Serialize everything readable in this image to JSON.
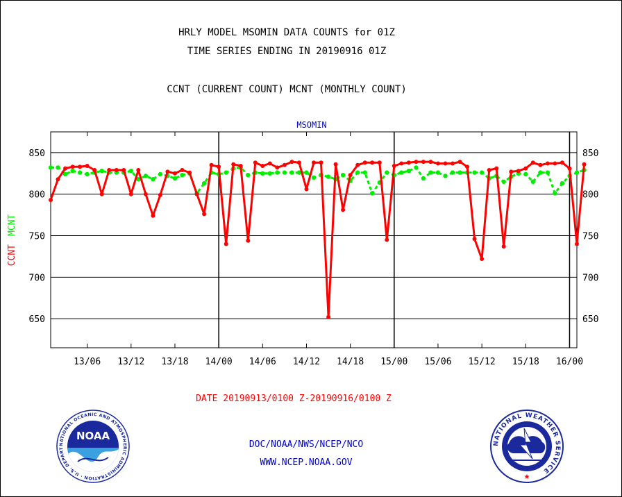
{
  "header": {
    "title_line1": "HRLY MODEL MSOMIN DATA COUNTS for 01Z",
    "title_line2": "TIME SERIES ENDING IN 20190916 01Z",
    "subtitle": "CCNT (CURRENT COUNT) MCNT (MONTHLY COUNT)"
  },
  "footer": {
    "date_range": "DATE 20190913/0100 Z-20190916/0100 Z",
    "agency_line": "DOC/NOAA/NWS/NCEP/NCO",
    "url_line": "WWW.NCEP.NOAA.GOV"
  },
  "logos": {
    "noaa_text": "NOAA",
    "noaa_ring": "NATIONAL OCEANIC AND ATMOSPHERIC ADMINISTRATION · U.S. DEPARTMENT OF COMMERCE ·",
    "nws_ring": "NATIONAL WEATHER SERVICE"
  },
  "colors": {
    "ccnt": "#ff0000",
    "mcnt": "#00ee00",
    "grid": "#000000",
    "label_blue": "#0000cc"
  },
  "chart_data": {
    "type": "line",
    "title": "MSOMIN",
    "ylabel_ccnt": "CCNT",
    "ylabel_mcnt": "MCNT",
    "ylim": [
      615,
      875
    ],
    "yticks": [
      650,
      700,
      750,
      800,
      850
    ],
    "x_range_hours": [
      1,
      73
    ],
    "xticks": [
      {
        "hour": 6,
        "label": "13/06"
      },
      {
        "hour": 12,
        "label": "13/12"
      },
      {
        "hour": 18,
        "label": "13/18"
      },
      {
        "hour": 24,
        "label": "14/00"
      },
      {
        "hour": 30,
        "label": "14/06"
      },
      {
        "hour": 36,
        "label": "14/12"
      },
      {
        "hour": 42,
        "label": "14/18"
      },
      {
        "hour": 48,
        "label": "15/00"
      },
      {
        "hour": 54,
        "label": "15/06"
      },
      {
        "hour": 60,
        "label": "15/12"
      },
      {
        "hour": 66,
        "label": "15/18"
      },
      {
        "hour": 72,
        "label": "16/00"
      }
    ],
    "day_boundaries": [
      24,
      48,
      72
    ],
    "series": [
      {
        "name": "CCNT",
        "values": [
          793,
          818,
          831,
          833,
          833,
          834,
          829,
          800,
          829,
          829,
          829,
          800,
          829,
          800,
          774,
          799,
          827,
          825,
          829,
          826,
          800,
          776,
          835,
          833,
          740,
          836,
          834,
          744,
          838,
          834,
          837,
          832,
          835,
          839,
          838,
          806,
          838,
          838,
          652,
          836,
          781,
          823,
          835,
          838,
          838,
          838,
          745,
          834,
          837,
          838,
          839,
          839,
          839,
          837,
          837,
          837,
          839,
          833,
          746,
          722,
          829,
          831,
          737,
          827,
          828,
          831,
          838,
          835,
          837,
          837,
          838,
          831,
          740,
          836
        ]
      },
      {
        "name": "MCNT",
        "values": [
          832,
          832,
          824,
          828,
          826,
          824,
          826,
          828,
          826,
          826,
          826,
          828,
          818,
          822,
          818,
          824,
          822,
          819,
          823,
          825,
          801,
          813,
          826,
          824,
          826,
          831,
          832,
          823,
          826,
          825,
          825,
          826,
          826,
          826,
          826,
          826,
          820,
          823,
          821,
          818,
          823,
          816,
          826,
          826,
          801,
          814,
          826,
          823,
          826,
          828,
          832,
          819,
          826,
          826,
          822,
          826,
          826,
          826,
          826,
          826,
          819,
          822,
          815,
          821,
          825,
          824,
          815,
          826,
          826,
          801,
          813,
          822,
          826,
          829
        ]
      }
    ]
  }
}
